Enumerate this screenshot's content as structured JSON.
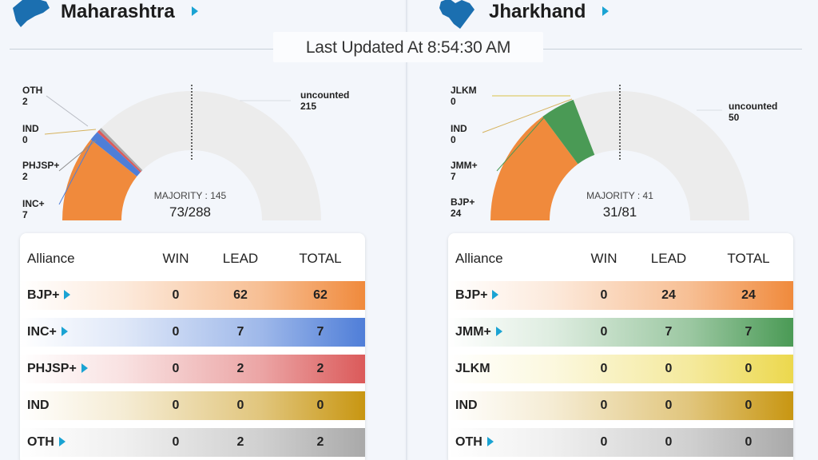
{
  "last_updated": "Last Updated At 8:54:30 AM",
  "colors": {
    "accent_arrow": "#1aa3d3",
    "bjp": "#f08a3c",
    "inc": "#4f7ed8",
    "phjsp": "#db5a5a",
    "ind": "#c89611",
    "oth": "#a9a9a9",
    "jmm": "#4a9a55",
    "jlkm": "#ecd84d",
    "uncounted": "#ececec"
  },
  "states": [
    {
      "name": "Maharashtra",
      "map_icon": "maharashtra-map-icon",
      "gauge": {
        "majority_label": "MAJORITY : 145",
        "ratio_label": "73/288",
        "total_seats": 288,
        "segments": [
          {
            "label": "INC+",
            "value": "7",
            "seats": 7,
            "color": "#4f7ed8"
          },
          {
            "label": "PHJSP+",
            "value": "2",
            "seats": 2,
            "color": "#db5a5a"
          },
          {
            "label": "IND",
            "value": "0",
            "seats": 0,
            "color": "#c89611"
          },
          {
            "label": "OTH",
            "value": "2",
            "seats": 2,
            "color": "#a9a9a9"
          }
        ],
        "bjp_seats": 62,
        "uncounted_label": "uncounted",
        "uncounted_value": "215"
      },
      "table": {
        "headers": {
          "alliance": "Alliance",
          "win": "WIN",
          "lead": "LEAD",
          "total": "TOTAL"
        },
        "rows": [
          {
            "alliance": "BJP+",
            "win": "0",
            "lead": "62",
            "total": "62",
            "color": "#f08a3c",
            "arrow": true
          },
          {
            "alliance": "INC+",
            "win": "0",
            "lead": "7",
            "total": "7",
            "color": "#4f7ed8",
            "arrow": true
          },
          {
            "alliance": "PHJSP+",
            "win": "0",
            "lead": "2",
            "total": "2",
            "color": "#db5a5a",
            "arrow": true
          },
          {
            "alliance": "IND",
            "win": "0",
            "lead": "0",
            "total": "0",
            "color": "#c89611",
            "arrow": false
          },
          {
            "alliance": "OTH",
            "win": "0",
            "lead": "2",
            "total": "2",
            "color": "#a9a9a9",
            "arrow": true
          }
        ]
      }
    },
    {
      "name": "Jharkhand",
      "map_icon": "jharkhand-map-icon",
      "gauge": {
        "majority_label": "MAJORITY : 41",
        "ratio_label": "31/81",
        "total_seats": 81,
        "segments": [
          {
            "label": "BJP+",
            "value": "24",
            "seats": 24,
            "color": "#f08a3c"
          },
          {
            "label": "JMM+",
            "value": "7",
            "seats": 7,
            "color": "#4a9a55"
          },
          {
            "label": "IND",
            "value": "0",
            "seats": 0,
            "color": "#c89611"
          },
          {
            "label": "JLKM",
            "value": "0",
            "seats": 0,
            "color": "#ecd84d"
          }
        ],
        "uncounted_label": "uncounted",
        "uncounted_value": "50"
      },
      "table": {
        "headers": {
          "alliance": "Alliance",
          "win": "WIN",
          "lead": "LEAD",
          "total": "TOTAL"
        },
        "rows": [
          {
            "alliance": "BJP+",
            "win": "0",
            "lead": "24",
            "total": "24",
            "color": "#f08a3c",
            "arrow": true
          },
          {
            "alliance": "JMM+",
            "win": "0",
            "lead": "7",
            "total": "7",
            "color": "#4a9a55",
            "arrow": true
          },
          {
            "alliance": "JLKM",
            "win": "0",
            "lead": "0",
            "total": "0",
            "color": "#ecd84d",
            "arrow": false
          },
          {
            "alliance": "IND",
            "win": "0",
            "lead": "0",
            "total": "0",
            "color": "#c89611",
            "arrow": false
          },
          {
            "alliance": "OTH",
            "win": "0",
            "lead": "0",
            "total": "0",
            "color": "#a9a9a9",
            "arrow": true
          }
        ]
      }
    }
  ]
}
